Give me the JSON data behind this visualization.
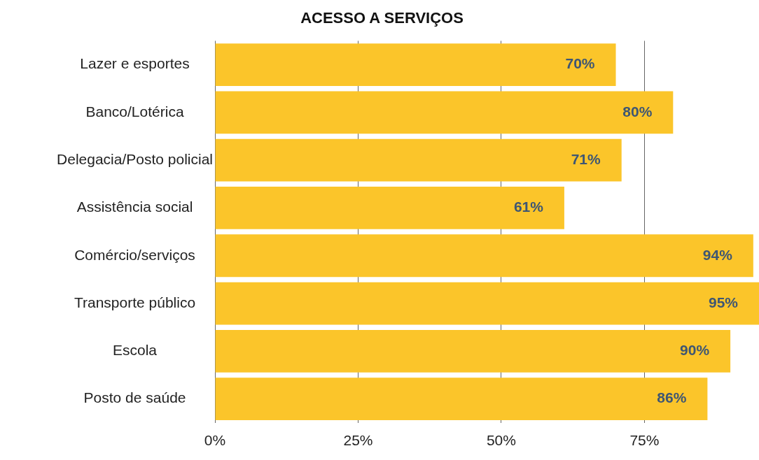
{
  "chart_data": {
    "type": "bar",
    "orientation": "horizontal",
    "title": "ACESSO A SERVIÇOS",
    "categories": [
      "Lazer e esportes",
      "Banco/Lotérica",
      "Delegacia/Posto policial",
      "Assistência social",
      "Comércio/serviços",
      "Transporte público",
      "Escola",
      "Posto de saúde"
    ],
    "values": [
      70,
      80,
      71,
      61,
      94,
      95,
      90,
      86
    ],
    "value_labels": [
      "70%",
      "80%",
      "71%",
      "61%",
      "94%",
      "95%",
      "90%",
      "86%"
    ],
    "color": "#fbc52a",
    "xlim": [
      0,
      95
    ],
    "xticks": [
      {
        "value": 0,
        "label": "0%"
      },
      {
        "value": 25,
        "label": "25%"
      },
      {
        "value": 50,
        "label": "50%"
      },
      {
        "value": 75,
        "label": "75%"
      }
    ],
    "grid": "x",
    "legend": false
  }
}
